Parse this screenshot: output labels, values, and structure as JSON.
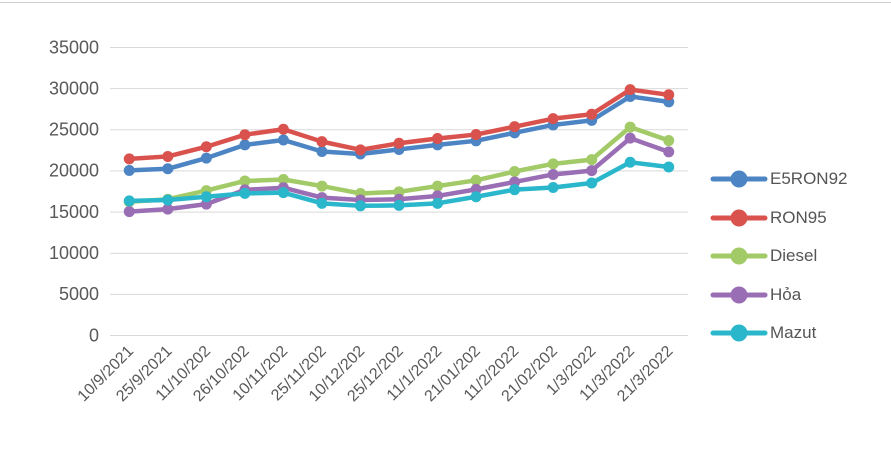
{
  "chart_data": {
    "type": "line",
    "title": "",
    "categories": [
      "10/9/2021",
      "25/9/2021",
      "11/10/202",
      "26/10/202",
      "10/11/202",
      "25/11/202",
      "10/12/202",
      "25/12/202",
      "11/1/2022",
      "21/01/202",
      "11/2/2022",
      "21/02/202",
      "1/3/2022",
      "11/3/2022",
      "21/3/2022"
    ],
    "series": [
      {
        "name": "E5RON92",
        "color": "#4d85c4",
        "values": [
          20000,
          20200,
          21500,
          23100,
          23700,
          22300,
          22000,
          22550,
          23100,
          23600,
          24570,
          25530,
          26080,
          28990,
          28330
        ]
      },
      {
        "name": "RON95",
        "color": "#da524e",
        "values": [
          21400,
          21700,
          22880,
          24340,
          25000,
          23500,
          22500,
          23300,
          23880,
          24360,
          25320,
          26290,
          26830,
          29820,
          29190
        ]
      },
      {
        "name": "Diesel",
        "color": "#a2ca66",
        "values": [
          16200,
          16500,
          17550,
          18720,
          18900,
          18100,
          17200,
          17400,
          18100,
          18800,
          19870,
          20800,
          21310,
          25270,
          23630
        ]
      },
      {
        "name": "Hỏa",
        "color": "#9a6eb4",
        "values": [
          15000,
          15300,
          15900,
          17640,
          17900,
          16700,
          16400,
          16500,
          16900,
          17700,
          18600,
          19510,
          19980,
          23920,
          22250
        ]
      },
      {
        "name": "Mazut",
        "color": "#2bb7cb",
        "values": [
          16300,
          16400,
          16800,
          17210,
          17300,
          16000,
          15700,
          15750,
          16000,
          16800,
          17660,
          17930,
          18470,
          20990,
          20420
        ]
      }
    ],
    "ylim": [
      0,
      35000
    ],
    "ytick_step": 5000,
    "ytick_labels": [
      "0",
      "5000",
      "10000",
      "15000",
      "20000",
      "25000",
      "30000",
      "35000"
    ],
    "grid": "horizontal-only",
    "legend_position": "right",
    "x_label_rotation_deg": -45
  },
  "style": {
    "background": "#ffffff",
    "grid_color": "#d9d9d9",
    "axis_text_color": "#595959",
    "legend_text_color": "#555555",
    "top_border_color": "#cfcfcf"
  }
}
